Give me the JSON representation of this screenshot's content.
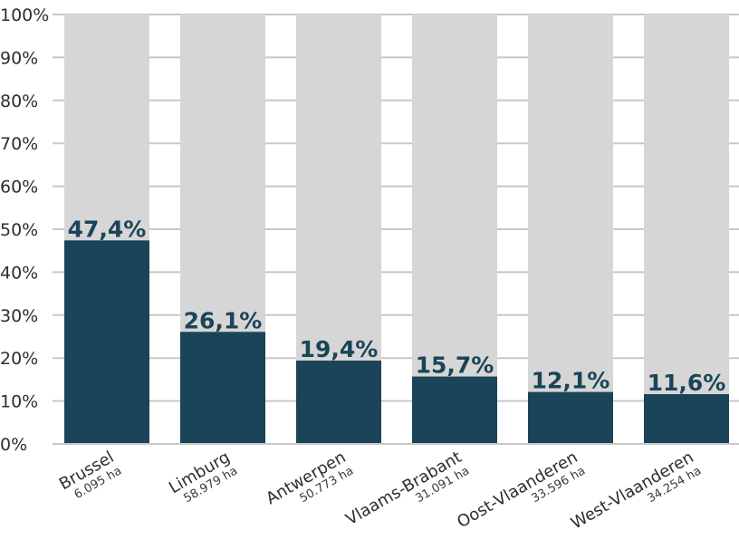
{
  "chart_data": {
    "type": "bar",
    "categories": [
      "Brussel",
      "Limburg",
      "Antwerpen",
      "Vlaams-Brabant",
      "Oost-Vlaanderen",
      "West-Vlaanderen"
    ],
    "sublabels": [
      "6.095 ha",
      "58.979 ha",
      "50.773 ha",
      "31.091 ha",
      "33.596 ha",
      "34.254 ha"
    ],
    "values": [
      47.4,
      26.1,
      19.4,
      15.7,
      12.1,
      11.6
    ],
    "value_labels": [
      "47,4%",
      "26,1%",
      "19,4%",
      "15,7%",
      "12,1%",
      "11,6%"
    ],
    "yticks": [
      "0%",
      "10%",
      "20%",
      "30%",
      "40%",
      "50%",
      "60%",
      "70%",
      "80%",
      "90%",
      "100%"
    ],
    "ylim": [
      0,
      100
    ],
    "grid": true,
    "colors": {
      "bar": "#1b4458",
      "background_bar": "#d6d6d6",
      "grid": "#c8c8c8",
      "value_text": "#1b4458"
    }
  }
}
